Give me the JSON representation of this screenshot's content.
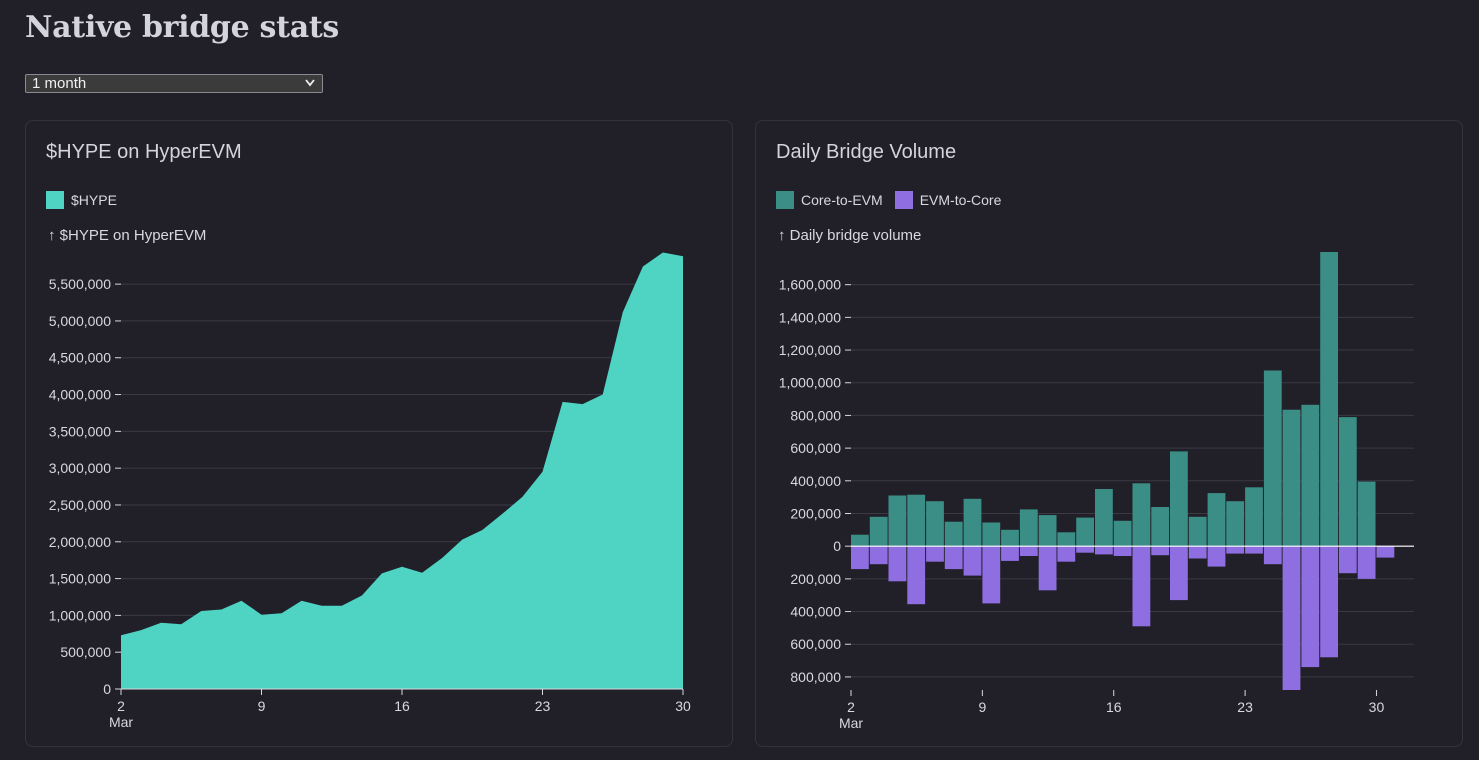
{
  "page": {
    "title": "Native bridge stats"
  },
  "range_select": {
    "value": "1 month",
    "chevron": "chevron-down-icon"
  },
  "colors": {
    "hype": "#4fd4c4",
    "core_to_evm": "#3a8e86",
    "evm_to_core": "#8e6ee0",
    "grid": "#3a3944",
    "zero": "#ffffff"
  },
  "chart_data": [
    {
      "type": "area",
      "title": "$HYPE on HyperEVM",
      "ylabel": "$HYPE on HyperEVM",
      "legend": [
        "$HYPE"
      ],
      "ylim": [
        0,
        5950000
      ],
      "yticks": [
        0,
        500000,
        1000000,
        1500000,
        2000000,
        2500000,
        3000000,
        3500000,
        4000000,
        4500000,
        5000000,
        5500000
      ],
      "x_start": 2,
      "x_end": 30,
      "xticks": [
        {
          "x": 2,
          "label": "2",
          "sub": "Mar"
        },
        {
          "x": 9,
          "label": "9"
        },
        {
          "x": 16,
          "label": "16"
        },
        {
          "x": 23,
          "label": "23"
        },
        {
          "x": 30,
          "label": "30"
        }
      ],
      "x": [
        2,
        3,
        4,
        5,
        6,
        7,
        8,
        9,
        10,
        11,
        12,
        13,
        14,
        15,
        16,
        17,
        18,
        19,
        20,
        21,
        22,
        23,
        24,
        25,
        26,
        27,
        28,
        29,
        30
      ],
      "values": [
        730000,
        800000,
        900000,
        880000,
        1060000,
        1080000,
        1200000,
        1010000,
        1030000,
        1200000,
        1130000,
        1130000,
        1270000,
        1570000,
        1660000,
        1580000,
        1780000,
        2030000,
        2160000,
        2380000,
        2610000,
        2950000,
        3900000,
        3870000,
        4000000,
        5120000,
        5740000,
        5930000,
        5880000
      ]
    },
    {
      "type": "bar",
      "title": "Daily Bridge Volume",
      "ylabel": "Daily bridge volume",
      "legend": [
        "Core-to-EVM",
        "EVM-to-Core"
      ],
      "ylim": [
        -880000,
        1800000
      ],
      "yticks": [
        -800000,
        -600000,
        -400000,
        -200000,
        0,
        200000,
        400000,
        600000,
        800000,
        1000000,
        1200000,
        1400000,
        1600000
      ],
      "x_start": 2,
      "x_end": 31,
      "xticks": [
        {
          "x": 2,
          "label": "2",
          "sub": "Mar"
        },
        {
          "x": 9,
          "label": "9"
        },
        {
          "x": 16,
          "label": "16"
        },
        {
          "x": 23,
          "label": "23"
        },
        {
          "x": 30,
          "label": "30"
        }
      ],
      "x": [
        2,
        3,
        4,
        5,
        6,
        7,
        8,
        9,
        10,
        11,
        12,
        13,
        14,
        15,
        16,
        17,
        18,
        19,
        20,
        21,
        22,
        23,
        24,
        25,
        26,
        27,
        28,
        29,
        30,
        31
      ],
      "series": [
        {
          "name": "Core-to-EVM",
          "values": [
            70000,
            180000,
            310000,
            315000,
            275000,
            150000,
            290000,
            145000,
            100000,
            225000,
            190000,
            85000,
            175000,
            350000,
            155000,
            385000,
            240000,
            580000,
            180000,
            325000,
            275000,
            360000,
            1075000,
            835000,
            865000,
            1800000,
            790000,
            395000,
            0,
            0
          ]
        },
        {
          "name": "EVM-to-Core",
          "values": [
            -140000,
            -110000,
            -215000,
            -355000,
            -95000,
            -140000,
            -180000,
            -350000,
            -90000,
            -60000,
            -270000,
            -95000,
            -40000,
            -50000,
            -60000,
            -490000,
            -55000,
            -330000,
            -75000,
            -125000,
            -45000,
            -45000,
            -110000,
            -880000,
            -740000,
            -680000,
            -165000,
            -200000,
            -70000,
            0
          ]
        }
      ]
    }
  ]
}
